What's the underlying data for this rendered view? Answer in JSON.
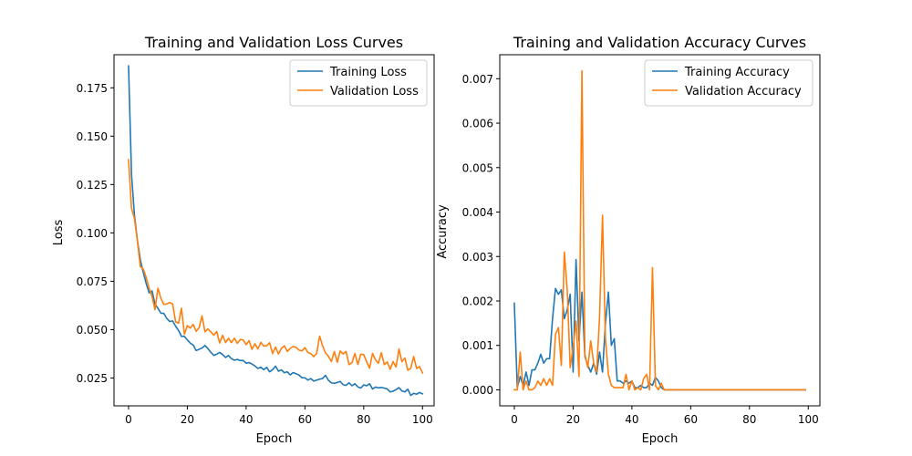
{
  "chart_data": [
    {
      "type": "line",
      "title": "Training and Validation Loss Curves",
      "xlabel": "Epoch",
      "ylabel": "Loss",
      "xlim": [
        -4.95,
        103.95
      ],
      "ylim": [
        0.0106,
        0.1921
      ],
      "xticks": [
        0,
        20,
        40,
        60,
        80,
        100
      ],
      "yticks": [
        0.025,
        0.05,
        0.075,
        0.1,
        0.125,
        0.15,
        0.175
      ],
      "ytick_decimals": 3,
      "legend": "top-right",
      "grid": false,
      "series": [
        {
          "name": "Training Loss",
          "color": "#1f77b4",
          "values": [
            0.1863,
            0.1304,
            0.1093,
            0.0962,
            0.0862,
            0.0796,
            0.0738,
            0.069,
            0.07,
            0.0632,
            0.061,
            0.0585,
            0.0584,
            0.0558,
            0.0542,
            0.0545,
            0.0518,
            0.0496,
            0.0465,
            0.0465,
            0.0447,
            0.043,
            0.042,
            0.0392,
            0.0398,
            0.0405,
            0.0418,
            0.0402,
            0.0383,
            0.0367,
            0.0373,
            0.0382,
            0.0371,
            0.0356,
            0.0366,
            0.035,
            0.0342,
            0.0346,
            0.034,
            0.0341,
            0.0326,
            0.033,
            0.0322,
            0.0312,
            0.0299,
            0.0306,
            0.0293,
            0.0305,
            0.0282,
            0.0293,
            0.0311,
            0.0285,
            0.0292,
            0.0277,
            0.0282,
            0.0266,
            0.0278,
            0.0272,
            0.0265,
            0.0251,
            0.0251,
            0.0239,
            0.0247,
            0.0234,
            0.0239,
            0.0244,
            0.0247,
            0.0264,
            0.0238,
            0.0225,
            0.0222,
            0.0227,
            0.0232,
            0.0215,
            0.0212,
            0.0225,
            0.021,
            0.022,
            0.0204,
            0.0198,
            0.0214,
            0.021,
            0.022,
            0.0193,
            0.0203,
            0.0199,
            0.0201,
            0.0198,
            0.0193,
            0.0178,
            0.0182,
            0.019,
            0.02,
            0.0183,
            0.0178,
            0.0192,
            0.016,
            0.0171,
            0.0166,
            0.0175,
            0.0168
          ]
        },
        {
          "name": "Validation Loss",
          "color": "#ff7f0e",
          "values": [
            0.1378,
            0.1127,
            0.1075,
            0.096,
            0.0826,
            0.0813,
            0.077,
            0.0714,
            0.0671,
            0.0603,
            0.0714,
            0.0662,
            0.063,
            0.0633,
            0.064,
            0.0633,
            0.0541,
            0.0533,
            0.0611,
            0.0476,
            0.0521,
            0.0508,
            0.0527,
            0.0491,
            0.051,
            0.0571,
            0.0489,
            0.0504,
            0.0488,
            0.0471,
            0.049,
            0.0431,
            0.0471,
            0.0433,
            0.0455,
            0.0433,
            0.0456,
            0.0429,
            0.0449,
            0.0447,
            0.0422,
            0.0443,
            0.0398,
            0.0427,
            0.04,
            0.0434,
            0.0415,
            0.0417,
            0.0432,
            0.0376,
            0.041,
            0.0374,
            0.0403,
            0.0416,
            0.0387,
            0.0403,
            0.0413,
            0.0408,
            0.0394,
            0.039,
            0.0407,
            0.0382,
            0.0376,
            0.036,
            0.0377,
            0.0466,
            0.0417,
            0.038,
            0.0362,
            0.0335,
            0.0387,
            0.0331,
            0.039,
            0.0374,
            0.0387,
            0.0319,
            0.0329,
            0.0377,
            0.032,
            0.0373,
            0.0371,
            0.0334,
            0.0301,
            0.0377,
            0.0344,
            0.0326,
            0.0381,
            0.0319,
            0.0333,
            0.0295,
            0.0335,
            0.0307,
            0.04,
            0.0334,
            0.0353,
            0.029,
            0.03,
            0.0361,
            0.0299,
            0.0309,
            0.0276
          ]
        }
      ]
    },
    {
      "type": "line",
      "title": "Training and Validation Accuracy Curves",
      "xlabel": "Epoch",
      "ylabel": "Accuracy",
      "xlim": [
        -4.95,
        103.95
      ],
      "ylim": [
        -0.00036,
        0.00754
      ],
      "xticks": [
        0,
        20,
        40,
        60,
        80,
        100
      ],
      "yticks": [
        0.0,
        0.001,
        0.002,
        0.003,
        0.004,
        0.005,
        0.006,
        0.007
      ],
      "ytick_decimals": 3,
      "legend": "top-right",
      "grid": false,
      "series": [
        {
          "name": "Training Accuracy",
          "color": "#1f77b4",
          "values": [
            0.00195,
            5e-05,
            0.0003,
            0.0001,
            0.0004,
            0.0001,
            0.00045,
            0.00045,
            0.0006,
            0.0008,
            0.0006,
            0.0007,
            0.0007,
            0.0016,
            0.00228,
            0.00215,
            0.00225,
            0.0016,
            0.0018,
            0.00215,
            0.0004,
            0.00293,
            0.0011,
            0.0022,
            0.00075,
            0.00055,
            0.0004,
            0.0006,
            0.00035,
            0.00085,
            0.0004,
            0.0015,
            0.0022,
            0.001,
            0.00115,
            0.0002,
            0.0002,
            0.00015,
            0.0002,
            0.00015,
            0.0002,
            5e-05,
            5e-05,
            0.0001,
            5e-05,
            5e-05,
            0.00015,
            0.0001,
            0.00028,
            0.0002,
            5e-05,
            0.0,
            0.0,
            0.0,
            0.0,
            0.0,
            0.0,
            0.0,
            0.0,
            0.0,
            0.0,
            0.0,
            0.0,
            0.0,
            0.0,
            0.0,
            0.0,
            0.0,
            0.0,
            0.0,
            0.0,
            0.0,
            0.0,
            0.0,
            0.0,
            0.0,
            0.0,
            0.0,
            0.0,
            0.0,
            0.0,
            0.0,
            0.0,
            0.0,
            0.0,
            0.0,
            0.0,
            0.0,
            0.0,
            0.0,
            0.0,
            0.0,
            0.0,
            0.0,
            0.0,
            0.0,
            0.0,
            0.0,
            0.0,
            0.0
          ]
        },
        {
          "name": "Validation Accuracy",
          "color": "#ff7f0e",
          "values": [
            0.0,
            0.0,
            0.00085,
            0.0,
            0.0002,
            0.0,
            0.0,
            5e-05,
            0.0002,
            0.0001,
            0.00025,
            0.0001,
            0.00025,
            0.0001,
            0.00125,
            0.0014,
            0.00055,
            0.0031,
            0.00225,
            0.0005,
            0.00095,
            0.00155,
            0.0003,
            0.00718,
            0.0008,
            0.0005,
            0.0011,
            0.0006,
            0.0004,
            0.00165,
            0.00393,
            0.00115,
            0.00035,
            0.0001,
            5e-05,
            5e-05,
            5e-05,
            5e-05,
            0.00035,
            0.0,
            0.0002,
            0.0,
            5e-05,
            0.0,
            0.00025,
            0.00035,
            0.0,
            0.00275,
            0.0001,
            0.0,
            0.00015,
            0.0,
            0.0,
            0.0,
            0.0,
            0.0,
            0.0,
            0.0,
            0.0,
            0.0,
            0.0,
            0.0,
            0.0,
            0.0,
            0.0,
            0.0,
            0.0,
            0.0,
            0.0,
            0.0,
            0.0,
            0.0,
            0.0,
            0.0,
            0.0,
            0.0,
            0.0,
            0.0,
            0.0,
            0.0,
            0.0,
            0.0,
            0.0,
            0.0,
            0.0,
            0.0,
            0.0,
            0.0,
            0.0,
            0.0,
            0.0,
            0.0,
            0.0,
            0.0,
            0.0,
            0.0,
            0.0,
            0.0,
            0.0,
            0.0
          ]
        }
      ]
    }
  ]
}
